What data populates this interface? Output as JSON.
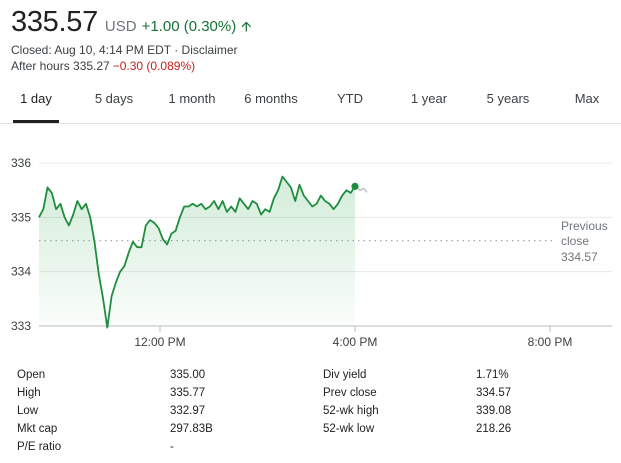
{
  "quote": {
    "price": "335.57",
    "currency": "USD",
    "change": "+1.00 (0.30%)",
    "closed_text": "Closed: Aug 10, 4:14 PM EDT · Disclaimer",
    "after_hours_label": "After hours 335.27",
    "after_hours_change": "−0.30 (0.089%)"
  },
  "tabs": [
    {
      "label": "1 day",
      "active": true
    },
    {
      "label": "5 days"
    },
    {
      "label": "1 month"
    },
    {
      "label": "6 months"
    },
    {
      "label": "YTD"
    },
    {
      "label": "1 year"
    },
    {
      "label": "5 years"
    },
    {
      "label": "Max"
    }
  ],
  "chart": {
    "previous_close_label": "Previous close",
    "previous_close_line1": "Previous",
    "previous_close_line2": "close",
    "previous_close_value": "334.57",
    "y_labels": [
      "336",
      "335",
      "334",
      "333"
    ],
    "x_labels": [
      "12:00 PM",
      "4:00 PM",
      "8:00 PM"
    ],
    "line_color": "#1e8e3e",
    "fill_color": "#34a853"
  },
  "chart_data": {
    "type": "line",
    "ylim": [
      333,
      336
    ],
    "y_ticks": [
      333,
      334,
      335,
      336
    ],
    "x_ticks": [
      "12:00 PM",
      "4:00 PM",
      "8:00 PM"
    ],
    "previous_close": 334.57,
    "series": [
      {
        "x": [
          "9:30 AM",
          "9:45 AM",
          "9:55 AM",
          "10:00 AM",
          "10:05 AM",
          "10:15 AM",
          "10:20 AM",
          "10:25 AM",
          "10:30 AM",
          "10:35 AM",
          "10:40 AM",
          "10:45 AM",
          "10:50 AM",
          "10:55 AM",
          "11:00 AM",
          "11:05 AM",
          "11:10 AM",
          "11:15 AM",
          "11:20 AM",
          "11:25 AM",
          "11:30 AM",
          "11:35 AM",
          "11:40 AM",
          "11:45 AM",
          "11:50 AM",
          "11:55 AM",
          "12:00 PM",
          "12:05 PM",
          "12:10 PM",
          "12:15 PM",
          "12:20 PM",
          "12:25 PM",
          "12:30 PM",
          "12:35 PM",
          "12:40 PM",
          "12:45 PM",
          "12:50 PM",
          "12:55 PM",
          "1:00 PM",
          "1:05 PM",
          "1:10 PM",
          "1:15 PM",
          "1:20 PM",
          "1:25 PM",
          "1:30 PM",
          "1:35 PM",
          "1:40 PM",
          "1:45 PM",
          "1:50 PM",
          "1:55 PM",
          "2:00 PM",
          "2:05 PM",
          "2:10 PM",
          "2:15 PM",
          "2:20 PM",
          "2:25 PM",
          "2:30 PM",
          "2:35 PM",
          "2:40 PM",
          "2:45 PM",
          "2:50 PM",
          "2:55 PM",
          "3:00 PM",
          "3:05 PM",
          "3:10 PM",
          "3:15 PM",
          "3:20 PM",
          "3:25 PM",
          "3:30 PM",
          "3:35 PM",
          "3:40 PM",
          "3:45 PM",
          "3:50 PM",
          "3:55 PM",
          "4:00 PM"
        ],
        "values": [
          335.0,
          335.15,
          335.55,
          335.45,
          335.15,
          335.25,
          335.0,
          334.85,
          335.05,
          335.3,
          335.15,
          335.25,
          335.0,
          334.55,
          333.95,
          333.5,
          332.97,
          333.55,
          333.8,
          334.0,
          334.1,
          334.35,
          334.55,
          334.45,
          334.45,
          334.85,
          334.95,
          334.9,
          334.8,
          334.6,
          334.5,
          334.7,
          334.75,
          335.0,
          335.2,
          335.2,
          335.25,
          335.2,
          335.25,
          335.15,
          335.2,
          335.3,
          335.15,
          335.3,
          335.1,
          335.2,
          335.1,
          335.35,
          335.25,
          335.15,
          335.3,
          335.25,
          335.05,
          335.15,
          335.1,
          335.35,
          335.5,
          335.75,
          335.65,
          335.55,
          335.3,
          335.6,
          335.4,
          335.3,
          335.2,
          335.25,
          335.4,
          335.3,
          335.25,
          335.15,
          335.25,
          335.4,
          335.5,
          335.45,
          335.57
        ]
      }
    ]
  },
  "stats": {
    "left": [
      {
        "label": "Open",
        "value": "335.00"
      },
      {
        "label": "High",
        "value": "335.77"
      },
      {
        "label": "Low",
        "value": "332.97"
      },
      {
        "label": "Mkt cap",
        "value": "297.83B"
      },
      {
        "label": "P/E ratio",
        "value": "-"
      }
    ],
    "right": [
      {
        "label": "Div yield",
        "value": "1.71%"
      },
      {
        "label": "Prev close",
        "value": "334.57"
      },
      {
        "label": "52-wk high",
        "value": "339.08"
      },
      {
        "label": "52-wk low",
        "value": "218.26"
      }
    ]
  }
}
